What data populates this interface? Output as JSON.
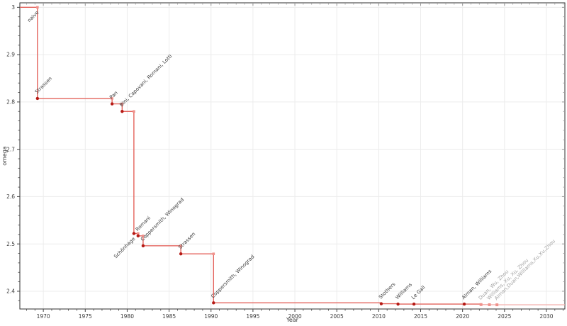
{
  "chart_data": {
    "type": "line",
    "step": true,
    "title": "",
    "xlabel": "Year",
    "ylabel": "omega",
    "xlim": [
      1967.2,
      2032.2
    ],
    "ylim": [
      2.3625,
      3.0095
    ],
    "x_major_ticks": [
      1970,
      1975,
      1980,
      1985,
      1990,
      1995,
      2000,
      2005,
      2010,
      2015,
      2020,
      2025,
      2030
    ],
    "x_minor_step": 1,
    "y_major_ticks": [
      2.4,
      2.5,
      2.6,
      2.7,
      2.8,
      2.9,
      3.0
    ],
    "y_minor_step": 0.02,
    "grid": true,
    "legend": false,
    "initial": {
      "omega": 3.0,
      "label": "naive"
    },
    "points": [
      {
        "year": 1969.3,
        "omega": 2.8074,
        "label": "Strassen",
        "label_anchor": "start",
        "faded": false
      },
      {
        "year": 1978.2,
        "omega": 2.796,
        "label": "Pan",
        "label_anchor": "start",
        "faded": false
      },
      {
        "year": 1979.4,
        "omega": 2.78,
        "label": "Bini, Capovani, Romani, Lotti",
        "label_anchor": "start",
        "faded": false
      },
      {
        "year": 1980.8,
        "omega": 2.522,
        "label": "Schönhage",
        "label_anchor": "end",
        "faded": false
      },
      {
        "year": 1981.3,
        "omega": 2.517,
        "label": "Romani",
        "label_anchor": "start",
        "faded": false
      },
      {
        "year": 1981.9,
        "omega": 2.496,
        "label": "Coppersmith, Winograd",
        "label_anchor": "start",
        "faded": false
      },
      {
        "year": 1986.4,
        "omega": 2.479,
        "label": "Strassen",
        "label_anchor": "start",
        "faded": false
      },
      {
        "year": 1990.3,
        "omega": 2.3755,
        "label": "Coppersmith, Winograd",
        "label_anchor": "start",
        "faded": false
      },
      {
        "year": 2010.3,
        "omega": 2.3737,
        "label": "Stothers",
        "label_anchor": "start",
        "faded": false
      },
      {
        "year": 2012.3,
        "omega": 2.3729,
        "label": "Williams",
        "label_anchor": "start",
        "faded": false
      },
      {
        "year": 2014.2,
        "omega": 2.3728639,
        "label": "Le Gall",
        "label_anchor": "start",
        "faded": false
      },
      {
        "year": 2020.2,
        "omega": 2.3728596,
        "label": "Alman, Williams",
        "label_anchor": "start",
        "faded": false
      },
      {
        "year": 2022.2,
        "omega": 2.371866,
        "label": "Duan, Wu, Zhou",
        "label_anchor": "start",
        "faded": true
      },
      {
        "year": 2023.2,
        "omega": 2.371552,
        "label": "Williams, Xu, Xu, Zhou",
        "label_anchor": "start",
        "faded": true
      },
      {
        "year": 2024.1,
        "omega": 2.371339,
        "label": "Alman,Duan,Williams,Xu,Xu,Zhou",
        "label_anchor": "start",
        "faded": true
      }
    ],
    "colors": {
      "line": "#e4635c",
      "line_faded": "#f3b4b0",
      "marker": "#b51a15",
      "marker_faded": "#f0928c",
      "corner_marker": "#f0928c",
      "grid": "#ececec",
      "frame": "#2f2f2f",
      "tick": "#444444",
      "tick_mirror": "#999999",
      "tick_label": "#3a3a3a",
      "axis_label": "#3a3a3a",
      "annotation": "#3d3d3d",
      "annotation_faded": "#a3a3a3",
      "background": "#ffffff"
    }
  }
}
